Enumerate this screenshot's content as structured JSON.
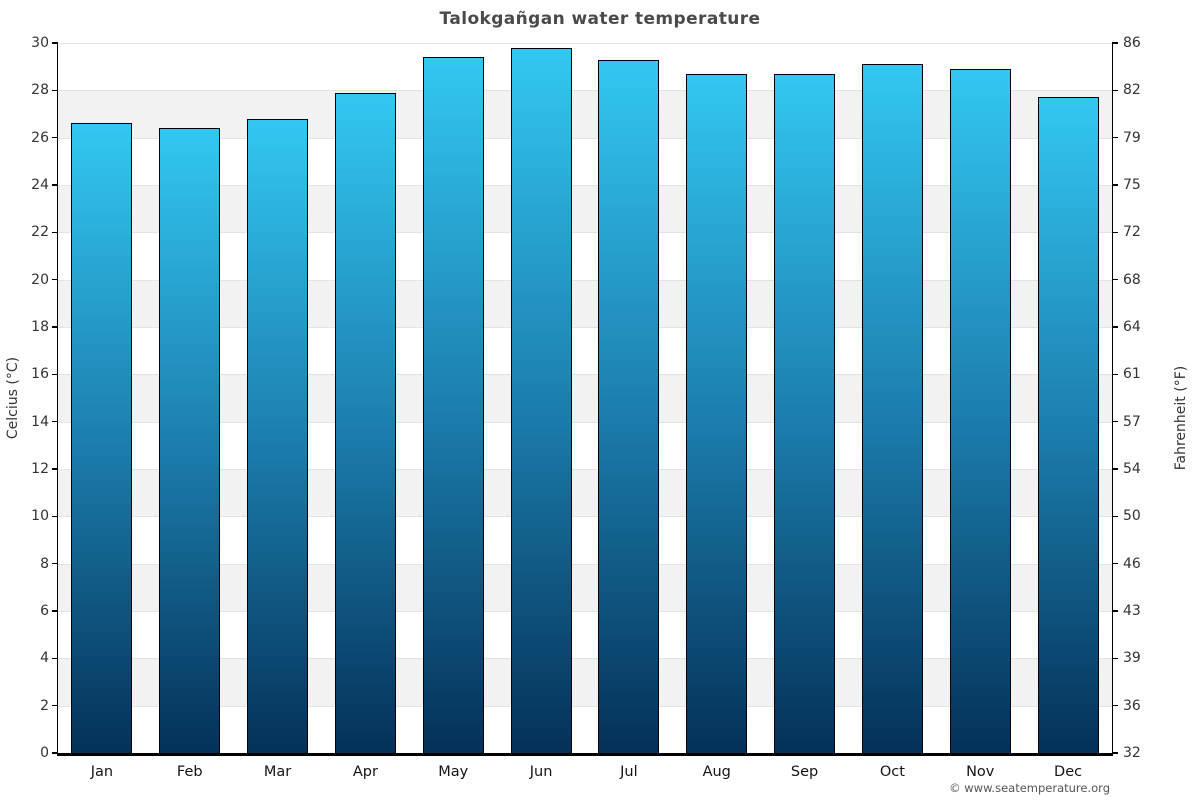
{
  "title": "Talokgañgan water temperature",
  "footer": {
    "copyright": "© www.seatemperature.org"
  },
  "axes": {
    "left_label": "Celcius (°C)",
    "right_label": "Fahrenheit (°F)"
  },
  "colors": {
    "bar_gradient_top": "#33c7f2",
    "bar_gradient_bottom": "#043158",
    "bar_border": "#000000",
    "band_alt": "#f2f2f2",
    "gridline": "#e2e2e2",
    "title_text": "#4a4a4a",
    "tick_text": "#333333"
  },
  "chart_data": {
    "type": "bar",
    "title": "Talokgañgan water temperature",
    "categories": [
      "Jan",
      "Feb",
      "Mar",
      "Apr",
      "May",
      "Jun",
      "Jul",
      "Aug",
      "Sep",
      "Oct",
      "Nov",
      "Dec"
    ],
    "values": [
      26.6,
      26.4,
      26.8,
      27.9,
      29.4,
      29.8,
      29.3,
      28.7,
      28.7,
      29.1,
      28.9,
      27.7
    ],
    "xlabel": "",
    "ylabel": "Celcius (°C)",
    "y2label": "Fahrenheit (°F)",
    "ylim": [
      0,
      30
    ],
    "y_ticks": [
      30,
      28,
      26,
      24,
      22,
      20,
      18,
      16,
      14,
      12,
      10,
      8,
      6,
      4,
      2,
      0
    ],
    "y2_ticks": [
      86,
      82,
      79,
      75,
      72,
      68,
      64,
      61,
      57,
      54,
      50,
      46,
      43,
      39,
      36,
      32
    ],
    "grid": "alternating-horizontal-bands",
    "legend": "none"
  }
}
